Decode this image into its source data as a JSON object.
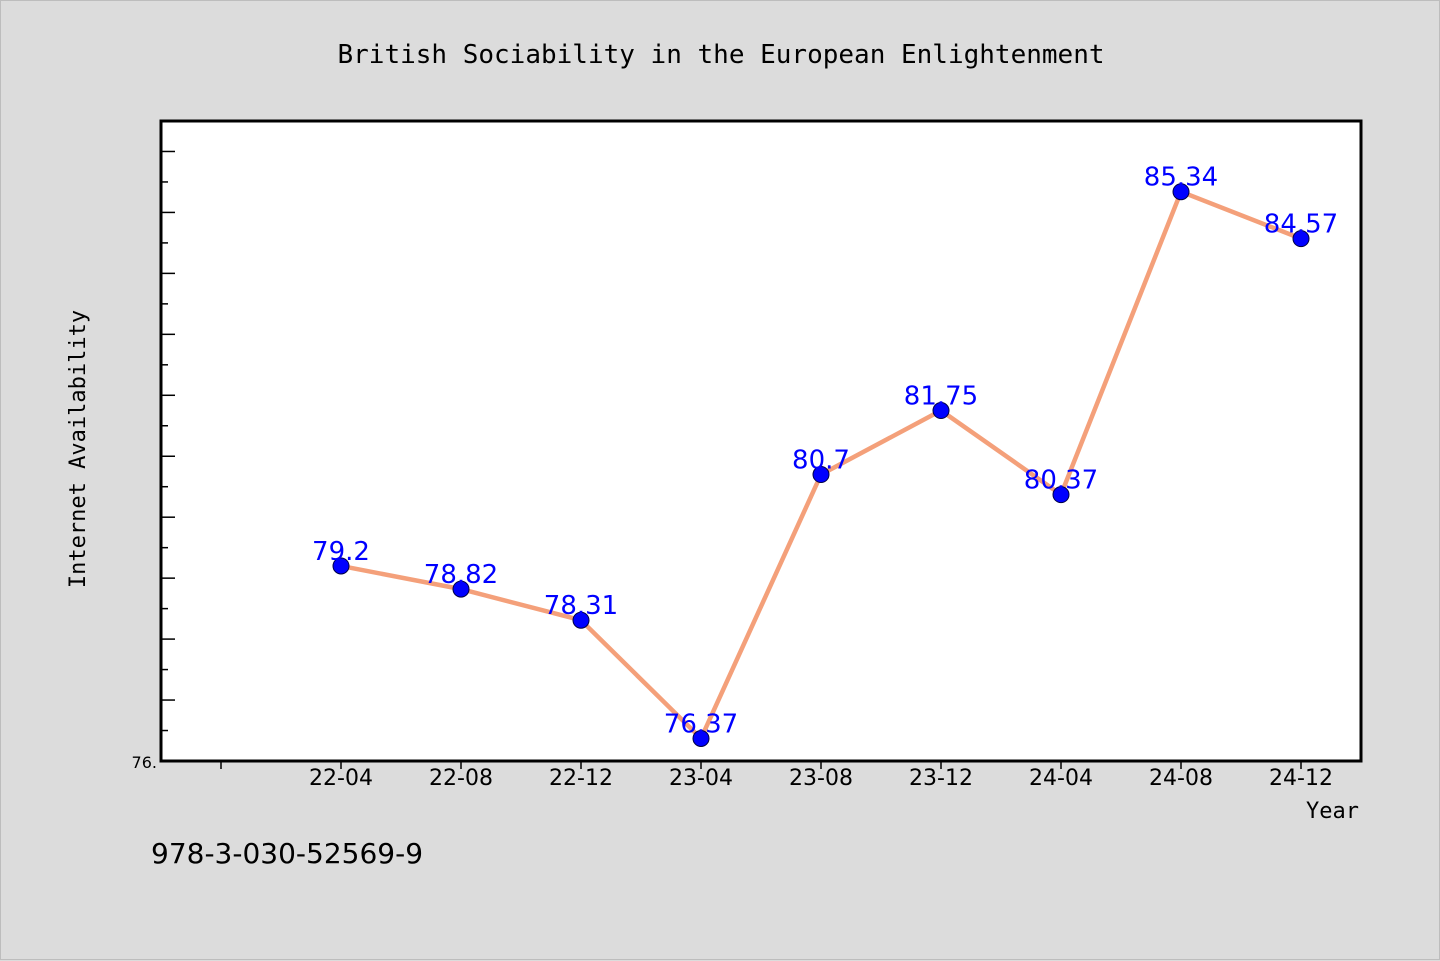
{
  "chart_data": {
    "type": "line",
    "title": "British Sociability in the European Enlightenment",
    "xlabel": "Year",
    "ylabel": "Internet Availability",
    "categories": [
      "22-04",
      "22-08",
      "22-12",
      "23-04",
      "23-08",
      "23-12",
      "24-04",
      "24-08",
      "24-12"
    ],
    "series": [
      {
        "values": [
          79.2,
          78.82,
          78.31,
          76.37,
          80.7,
          81.75,
          80.37,
          85.34,
          84.57
        ]
      }
    ],
    "data_labels": [
      "79.2",
      "78.82",
      "78.31",
      "76.37",
      "80.7",
      "81.75",
      "80.37",
      "85.34",
      "84.57"
    ],
    "ylim": [
      76,
      86.5
    ],
    "y_tick_labels": [
      "76."
    ],
    "grid": false,
    "line_color": "#f4a07a",
    "marker_color": "#0000ff",
    "label_color": "#0000ff"
  },
  "footer": {
    "isbn": "978-3-030-52569-9"
  }
}
